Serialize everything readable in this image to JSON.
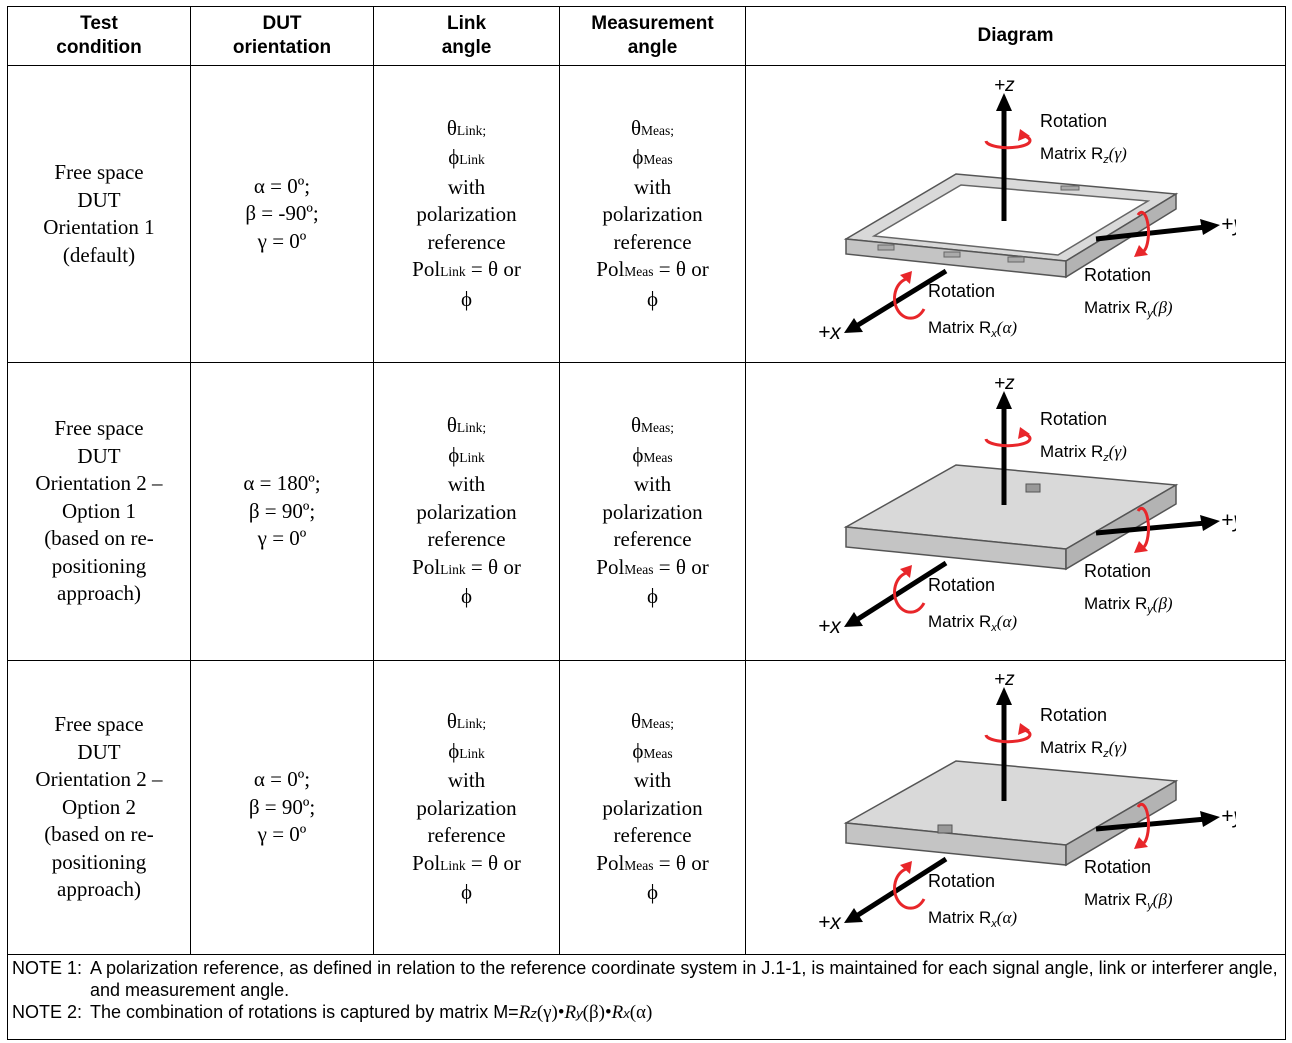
{
  "headers": {
    "test_condition": [
      "Test",
      "condition"
    ],
    "dut_orientation": [
      "DUT",
      "orientation"
    ],
    "link_angle": [
      "Link",
      "angle"
    ],
    "measurement_angle": [
      "Measurement",
      "angle"
    ],
    "diagram": "Diagram"
  },
  "rows": [
    {
      "condition": [
        "Free space",
        "DUT",
        "Orientation 1",
        "(default)"
      ],
      "orientation": [
        "α = 0º;",
        "β = -90º;",
        "γ = 0º"
      ],
      "link": {
        "theta": "θ",
        "theta_sub": "Link;",
        "phi": "ϕ",
        "phi_sub": "Link",
        "with": "with",
        "pol": "polarization",
        "ref": "reference",
        "pol_prefix": "Pol",
        "pol_sub": "Link",
        "pol_suffix": " = θ or",
        "last": "ϕ"
      },
      "meas": {
        "theta": "θ",
        "theta_sub": "Meas;",
        "phi": "ϕ",
        "phi_sub": "Meas",
        "with": "with",
        "pol": "polarization",
        "ref": "reference",
        "pol_prefix": "Pol",
        "pol_sub": "Meas",
        "pol_suffix": " = θ or",
        "last": "ϕ"
      },
      "diagram": {
        "z": "+z",
        "y": "+y",
        "x": "+x",
        "rot_z": "Rotation",
        "mat_z": "Matrix R",
        "sub_z": "z",
        "arg_z": "(γ)",
        "rot_y": "Rotation",
        "mat_y": "Matrix R",
        "sub_y": "y",
        "arg_y": "(β)",
        "rot_x": "Rotation",
        "mat_x": "Matrix R",
        "sub_x": "x",
        "arg_x": "(α)"
      }
    },
    {
      "condition": [
        "Free space",
        "DUT",
        "Orientation 2 –",
        "Option 1",
        "(based on re-",
        "positioning",
        "approach)"
      ],
      "orientation": [
        "α = 180º;",
        "β = 90º;",
        "γ = 0º"
      ],
      "link": {
        "theta": "θ",
        "theta_sub": "Link;",
        "phi": "ϕ",
        "phi_sub": "Link",
        "with": "with",
        "pol": "polarization",
        "ref": "reference",
        "pol_prefix": "Pol",
        "pol_sub": "Link",
        "pol_suffix": " = θ or",
        "last": "ϕ"
      },
      "meas": {
        "theta": "θ",
        "theta_sub": "Meas;",
        "phi": "ϕ",
        "phi_sub": "Meas",
        "with": "with",
        "pol": "polarization",
        "ref": "reference",
        "pol_prefix": "Pol",
        "pol_sub": "Meas",
        "pol_suffix": " = θ or",
        "last": "ϕ"
      },
      "diagram": {
        "z": "+z",
        "y": "+y",
        "x": "+x",
        "rot_z": "Rotation",
        "mat_z": "Matrix R",
        "sub_z": "z",
        "arg_z": "(γ)",
        "rot_y": "Rotation",
        "mat_y": "Matrix R",
        "sub_y": "y",
        "arg_y": "(β)",
        "rot_x": "Rotation",
        "mat_x": "Matrix R",
        "sub_x": "x",
        "arg_x": "(α)"
      }
    },
    {
      "condition": [
        "Free space",
        "DUT",
        "Orientation 2 –",
        "Option 2",
        "(based on re-",
        "positioning",
        "approach)"
      ],
      "orientation": [
        "α = 0º;",
        "β = 90º;",
        "γ = 0º"
      ],
      "link": {
        "theta": "θ",
        "theta_sub": "Link;",
        "phi": "ϕ",
        "phi_sub": "Link",
        "with": "with",
        "pol": "polarization",
        "ref": "reference",
        "pol_prefix": "Pol",
        "pol_sub": "Link",
        "pol_suffix": " = θ or",
        "last": "ϕ"
      },
      "meas": {
        "theta": "θ",
        "theta_sub": "Meas;",
        "phi": "ϕ",
        "phi_sub": "Meas",
        "with": "with",
        "pol": "polarization",
        "ref": "reference",
        "pol_prefix": "Pol",
        "pol_sub": "Meas",
        "pol_suffix": " = θ or",
        "last": "ϕ"
      },
      "diagram": {
        "z": "+z",
        "y": "+y",
        "x": "+x",
        "rot_z": "Rotation",
        "mat_z": "Matrix R",
        "sub_z": "z",
        "arg_z": "(γ)",
        "rot_y": "Rotation",
        "mat_y": "Matrix R",
        "sub_y": "y",
        "arg_y": "(β)",
        "rot_x": "Rotation",
        "mat_x": "Matrix R",
        "sub_x": "x",
        "arg_x": "(α)"
      }
    }
  ],
  "notes": {
    "n1_label": "NOTE 1:",
    "n1_text": "A polarization reference, as defined in relation to the reference coordinate system in J.1-1, is maintained for each signal angle, link or interferer angle, and measurement angle.",
    "n2_label": "NOTE 2:",
    "n2_text": "The combination of rotations is captured by matrix M=",
    "n2_r1": "R",
    "n2_s1": "z",
    "n2_a1": "(γ)•",
    "n2_r2": "R",
    "n2_s2": "y",
    "n2_a2": "(β)•",
    "n2_r3": "R",
    "n2_s3": "x",
    "n2_a3": "(α)"
  },
  "colors": {
    "arrow": "#000000",
    "rotation": "#e8262a",
    "device_top": "#d9d9d9",
    "device_side": "#c4c4c4",
    "screen": "#ffffff"
  }
}
